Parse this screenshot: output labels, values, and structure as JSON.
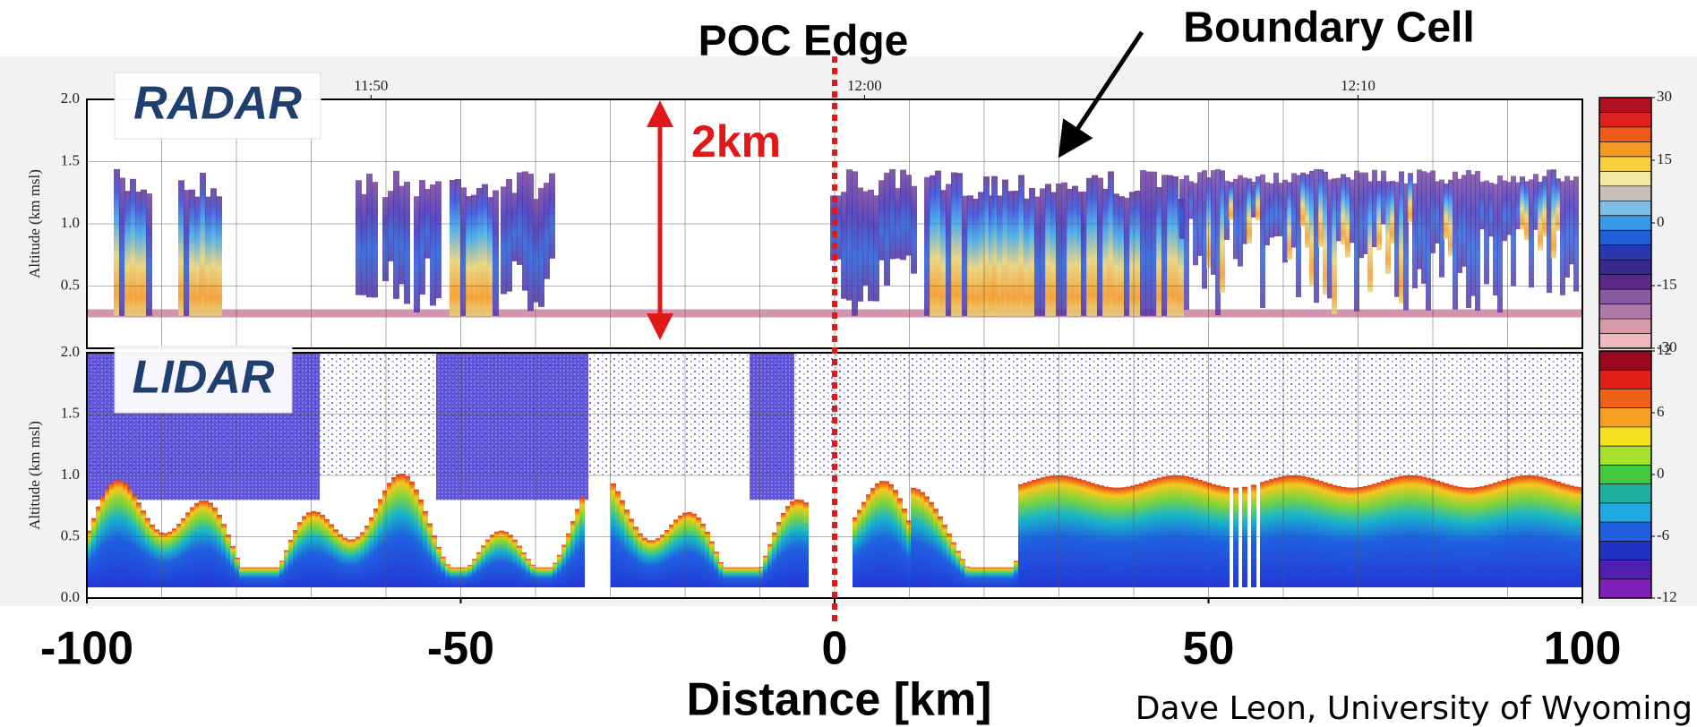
{
  "chart_data": [
    {
      "type": "curtain",
      "label": "RADAR",
      "ylabel": "Altitude (km msl)",
      "ylim": [
        0,
        2
      ],
      "yticks": [
        {
          "value": 0.5,
          "label": "0.5"
        },
        {
          "value": 1,
          "label": "1.0"
        },
        {
          "value": 1.5,
          "label": "1.5"
        },
        {
          "value": 2,
          "label": "2.0"
        }
      ],
      "time_ticks": [
        {
          "value": -62,
          "label": "11:50"
        },
        {
          "value": 4,
          "label": "12:00"
        },
        {
          "value": 70,
          "label": "12:10"
        }
      ],
      "colorbar": {
        "lim": [
          -30,
          30
        ],
        "ticks": [
          30,
          15,
          0,
          -15,
          -30
        ]
      }
    },
    {
      "type": "curtain",
      "label": "LIDAR",
      "ylabel": "Altitude (km msl)",
      "ylim": [
        0,
        2
      ],
      "yticks": [
        {
          "value": 0,
          "label": "0.0"
        },
        {
          "value": 0.5,
          "label": "0.5"
        },
        {
          "value": 1,
          "label": "1.0"
        },
        {
          "value": 1.5,
          "label": "1.5"
        },
        {
          "value": 2,
          "label": "2.0"
        }
      ],
      "colorbar": {
        "lim": [
          -12,
          12
        ],
        "ticks": [
          12,
          6,
          0,
          -6,
          -12
        ]
      }
    }
  ],
  "x_axis": {
    "label": "Distance [km]",
    "xlim": [
      -100,
      100
    ],
    "xticks": [
      -100,
      -50,
      0,
      50,
      100
    ],
    "grid": [
      -90,
      -80,
      -70,
      -60,
      -50,
      -40,
      -30,
      -20,
      -10,
      0,
      10,
      20,
      30,
      40,
      50,
      60,
      70,
      80,
      90
    ]
  },
  "annotations": {
    "poc_edge": {
      "text": "POC Edge",
      "x": 0
    },
    "boundary_cell": "Boundary Cell",
    "scale_bar": "2km"
  },
  "credit": "Dave Leon, University of Wyoming"
}
